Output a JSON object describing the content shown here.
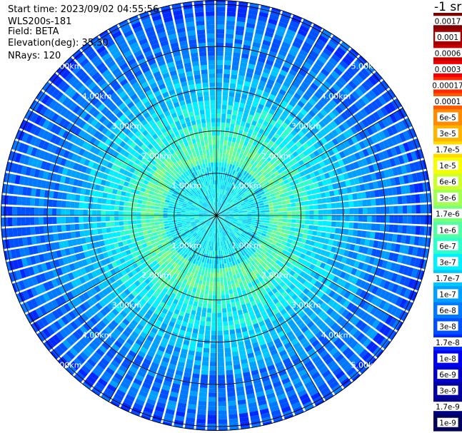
{
  "header": {
    "start_time": "Start time: 2023/09/02 04:55:56",
    "instrument": "WLS200s-181",
    "field": "Field: BETA",
    "elevation": "Elevation(deg): 35.30",
    "nrays": "NRays: 120"
  },
  "colorbar": {
    "unit_label": "-1 sr",
    "levels": [
      {
        "label": "0.0017",
        "color": "#800000"
      },
      {
        "label": "0.001",
        "color": "#a50000"
      },
      {
        "label": "0.0006",
        "color": "#c80000"
      },
      {
        "label": "0.0003",
        "color": "#f00000"
      },
      {
        "label": "0.00017",
        "color": "#ff2a00"
      },
      {
        "label": "0.0001",
        "color": "#ff5a00"
      },
      {
        "label": "6e-5",
        "color": "#ff8c00"
      },
      {
        "label": "3e-5",
        "color": "#ffb400"
      },
      {
        "label": "1.7e-5",
        "color": "#ffdc00"
      },
      {
        "label": "1e-5",
        "color": "#f5ff00"
      },
      {
        "label": "6e-6",
        "color": "#ccff2b"
      },
      {
        "label": "3e-6",
        "color": "#a3ff54"
      },
      {
        "label": "1.7e-6",
        "color": "#7aff7d"
      },
      {
        "label": "1e-6",
        "color": "#54ffa3"
      },
      {
        "label": "6e-7",
        "color": "#2bffcc"
      },
      {
        "label": "3e-7",
        "color": "#00f0ff"
      },
      {
        "label": "1.7e-7",
        "color": "#00c8ff"
      },
      {
        "label": "1e-7",
        "color": "#00a0ff"
      },
      {
        "label": "6e-8",
        "color": "#0078ff"
      },
      {
        "label": "3e-8",
        "color": "#0050ff"
      },
      {
        "label": "1.7e-8",
        "color": "#0028ff"
      },
      {
        "label": "1e-8",
        "color": "#0000f0"
      },
      {
        "label": "6e-9",
        "color": "#0000c8"
      },
      {
        "label": "3e-9",
        "color": "#0000a0"
      },
      {
        "label": "1.7e-9",
        "color": "#000080"
      },
      {
        "label": "1e-9",
        "color": "#00005a"
      }
    ]
  },
  "chart_data": {
    "type": "heatmap",
    "projection": "polar PPI",
    "field": "BETA",
    "nrays": 120,
    "range_rings_km": [
      1,
      2,
      3,
      4,
      5
    ],
    "range_ring_labels": [
      "1.00km",
      "2.00km",
      "3.00km",
      "4.00km",
      "5.00km"
    ],
    "max_range_km": 5.1,
    "azimuth_spokes_deg": [
      0,
      30,
      60,
      90,
      120,
      150,
      180,
      210,
      240,
      270,
      300,
      330
    ],
    "radial_profile": [
      {
        "range_km": 0.5,
        "value": "3e-7"
      },
      {
        "range_km": 1.0,
        "value": "3e-7"
      },
      {
        "range_km": 1.5,
        "value": "1e-6"
      },
      {
        "range_km": 2.0,
        "value": "6e-7"
      },
      {
        "range_km": 2.5,
        "value": "3e-7"
      },
      {
        "range_km": 3.0,
        "value": "1.7e-7"
      },
      {
        "range_km": 3.5,
        "value": "1e-7"
      },
      {
        "range_km": 4.0,
        "value": "6e-8"
      },
      {
        "range_km": 4.5,
        "value": "6e-8"
      },
      {
        "range_km": 5.0,
        "value": "3e-8"
      }
    ],
    "grid": true
  }
}
